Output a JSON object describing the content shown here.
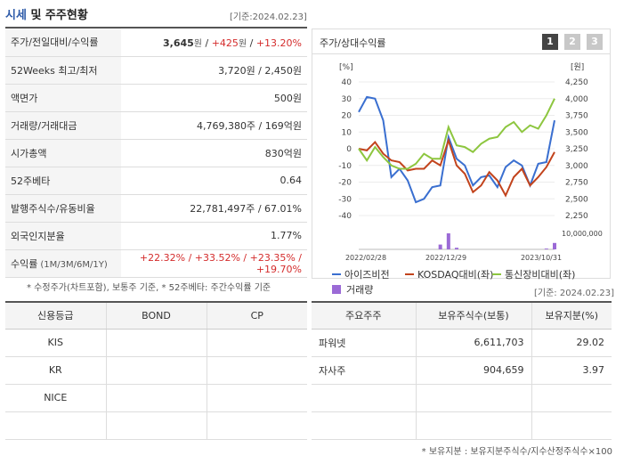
{
  "header": {
    "title_hl": "시세",
    "title_rest": " 및 주주현황",
    "base_date": "[기준:2024.02.23]"
  },
  "info_rows": [
    {
      "label": "주가/전일대비/수익률",
      "v1": "3,645",
      "u1": "원",
      "sep1": " / ",
      "v2": "+425",
      "u2": "원",
      "sep2": " / ",
      "v3": "+13.20%"
    },
    {
      "label": "52Weeks 최고/최저",
      "value": "3,720원 / 2,450원"
    },
    {
      "label": "액면가",
      "value": "500원"
    },
    {
      "label": "거래량/거래대금",
      "value": "4,769,380주 / 169억원"
    },
    {
      "label": "시가총액",
      "value": "830억원"
    },
    {
      "label": "52주베타",
      "value": "0.64"
    },
    {
      "label": "발행주식수/유동비율",
      "value": "22,781,497주 / 67.01%"
    },
    {
      "label": "외국인지분율",
      "value": "1.77%"
    },
    {
      "label": "수익률",
      "label_sub": "(1M/3M/6M/1Y)",
      "value": "+22.32% / +33.52% / +23.35% / +19.70%"
    }
  ],
  "note": "* 수정주가(차트포함), 보통주 기준, * 52주베타: 주간수익률 기준",
  "chart_panel": {
    "title": "주가/상대수익률",
    "buttons": [
      "1",
      "2",
      "3"
    ]
  },
  "chart_data": {
    "type": "line",
    "left_axis_unit": "[%]",
    "right_axis_unit": "[원]",
    "left_ticks": [
      "40",
      "30",
      "20",
      "10",
      "0",
      "-10",
      "-20",
      "-30",
      "-40"
    ],
    "right_ticks": [
      "4,250",
      "4,000",
      "3,750",
      "3,500",
      "3,250",
      "3,000",
      "2,750",
      "2,500",
      "2,250"
    ],
    "volume_tick": "10,000,000",
    "x_labels": [
      "2022/02/28",
      "2022/12/29",
      "2023/10/31"
    ],
    "ylim": [
      -40,
      40
    ],
    "series": [
      {
        "name": "아이즈비전",
        "color": "#3a6fd0",
        "values": [
          22,
          31,
          30,
          17,
          -17,
          -12,
          -19,
          -32,
          -30,
          -23,
          -22,
          7,
          -6,
          -10,
          -22,
          -17,
          -16,
          -23,
          -11,
          -7,
          -10,
          -22,
          -9,
          -8,
          17
        ]
      },
      {
        "name": "KOSDAQ대비(좌)",
        "color": "#c2431c",
        "values": [
          0,
          -1,
          4,
          -3,
          -7,
          -8,
          -13,
          -12,
          -12,
          -7,
          -10,
          5,
          -10,
          -15,
          -26,
          -22,
          -14,
          -19,
          -28,
          -17,
          -12,
          -22,
          -17,
          -11,
          -2
        ]
      },
      {
        "name": "통신장비대비(좌)",
        "color": "#8dc63f",
        "values": [
          0,
          -7,
          1,
          -5,
          -10,
          -12,
          -12,
          -9,
          -3,
          -6,
          -6,
          13,
          2,
          1,
          -2,
          3,
          6,
          7,
          13,
          16,
          10,
          14,
          12,
          20,
          30
        ]
      }
    ],
    "volume": {
      "name": "거래량",
      "color": "#9b6ad6",
      "values": [
        0,
        0,
        0,
        0,
        0,
        0,
        0,
        0,
        0,
        0,
        0.3,
        1,
        0.1,
        0,
        0,
        0,
        0,
        0,
        0,
        0,
        0,
        0,
        0,
        0.05,
        0.4
      ]
    }
  },
  "credit": {
    "headers": [
      "신용등급",
      "BOND",
      "CP"
    ],
    "rows": [
      [
        "KIS",
        "",
        ""
      ],
      [
        "KR",
        "",
        ""
      ],
      [
        "NICE",
        "",
        ""
      ],
      [
        "",
        "",
        ""
      ]
    ]
  },
  "holders": {
    "base_date": "[기준: 2024.02.23]",
    "headers": [
      "주요주주",
      "보유주식수(보통)",
      "보유지분(%)"
    ],
    "rows": [
      [
        "파워넷",
        "6,611,703",
        "29.02"
      ],
      [
        "자사주",
        "904,659",
        "3.97"
      ],
      [
        "",
        "",
        ""
      ],
      [
        "",
        "",
        ""
      ]
    ]
  },
  "footnote": "* 보유지분 : 보유지분주식수/지수산정주식수×100"
}
